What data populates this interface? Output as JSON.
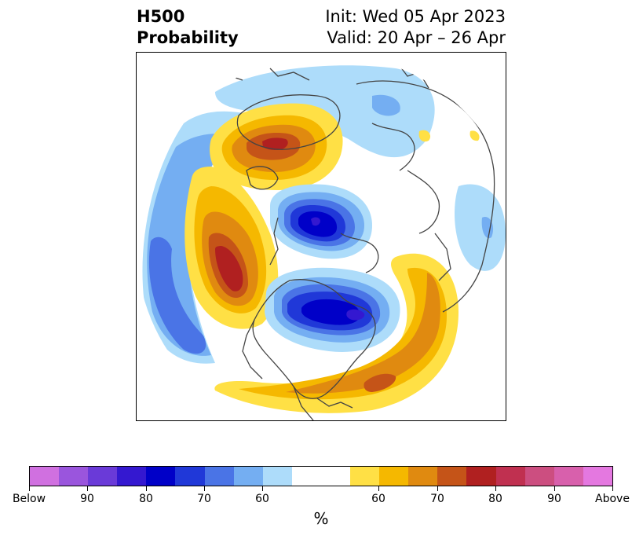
{
  "header": {
    "title_line1": "H500",
    "title_line2": "Probability",
    "init_text": "Init: Wed 05 Apr 2023",
    "valid_text": "Valid: 20 Apr – 26 Apr"
  },
  "map": {
    "projection": "north-polar-stereographic",
    "variable": "500 hPa height probability",
    "legend_below_color": "#0000cc",
    "legend_above_color": "#b22222"
  },
  "colorbar": {
    "colors": [
      "#d070e0",
      "#9a55dd",
      "#6a3ad8",
      "#3418d0",
      "#0000c8",
      "#2038d8",
      "#4a74e6",
      "#74aef2",
      "#addcfa",
      "#ffffff",
      "#ffe045",
      "#f5b800",
      "#e08a10",
      "#c55418",
      "#b02020",
      "#c03050",
      "#cc4e80",
      "#d860ac",
      "#e478e0"
    ],
    "tick_labels": [
      "Below",
      "90",
      "80",
      "70",
      "60",
      "60",
      "70",
      "80",
      "90",
      "Above"
    ],
    "units_label": "%"
  }
}
